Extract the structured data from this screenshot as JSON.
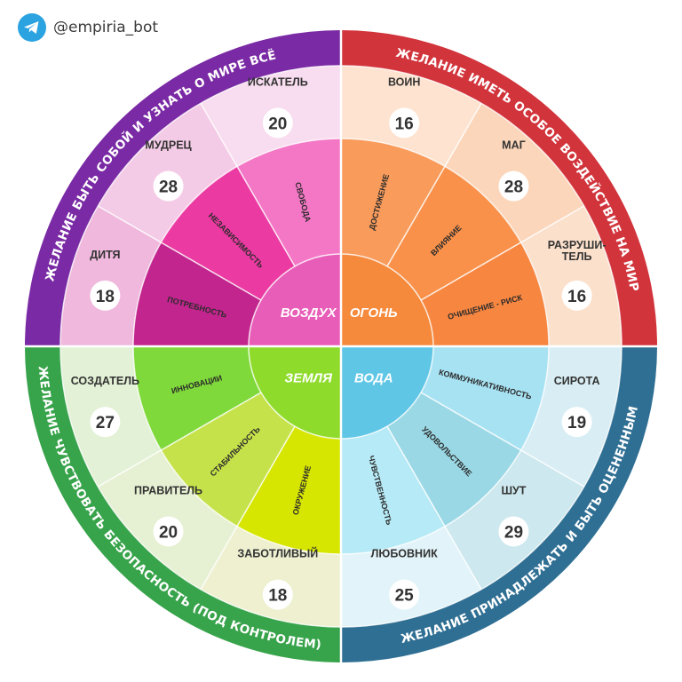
{
  "header": {
    "handle": "@empiria_bot",
    "icon": "telegram-icon"
  },
  "quadrants": [
    {
      "key": "air",
      "desire": "ЖЕЛАНИЕ БЫТЬ СОБОЙ И УЗНАТЬ О МИРЕ ВСЁ",
      "element": "ВОЗДУХ",
      "colors": {
        "band": "#7a2aa4",
        "core": "#e85db8"
      },
      "needs": [
        {
          "label": "ПОТРЕБНОСТЬ",
          "color": "#c2258e"
        },
        {
          "label": "НЕЗАВИСИМОСТЬ",
          "color": "#eb3aa2"
        },
        {
          "label": "СВОБОДА",
          "color": "#f477c6"
        }
      ],
      "archetypes": [
        {
          "name": "ДИТЯ",
          "value": 18,
          "color": "#efb8dc"
        },
        {
          "name": "МУДРЕЦ",
          "value": 28,
          "color": "#f4cbe6"
        },
        {
          "name": "ИСКАТЕЛЬ",
          "value": 20,
          "color": "#f8dcef"
        }
      ]
    },
    {
      "key": "fire",
      "desire": "ЖЕЛАНИЕ ИМЕТЬ ОСОБОЕ ВОЗДЕЙСТВИЕ НА МИР",
      "element": "ОГОНЬ",
      "colors": {
        "band": "#d2343c",
        "core": "#f58a3c"
      },
      "needs": [
        {
          "label": "ДОСТИЖЕНИЕ",
          "color": "#f99b5b"
        },
        {
          "label": "ВЛИЯНИЕ",
          "color": "#f9914a"
        },
        {
          "label": "ОЧИЩЕНИЕ - РИСК",
          "color": "#f78640"
        }
      ],
      "archetypes": [
        {
          "name": "ВОИН",
          "value": 16,
          "color": "#fde3d0"
        },
        {
          "name": "МАГ",
          "value": 28,
          "color": "#fcd6ba"
        },
        {
          "name": "РАЗРУШИ-ТЕЛЬ",
          "value": 16,
          "color": "#fbe0cc"
        }
      ]
    },
    {
      "key": "water",
      "desire": "ЖЕЛАНИЕ ПРИНАДЛЕЖАТЬ И БЫТЬ ОЦЕНЕННЫМ",
      "element": "ВОДА",
      "colors": {
        "band": "#2f6f93",
        "core": "#5fc6e6"
      },
      "needs": [
        {
          "label": "КОММУНИКАТИВНОСТЬ",
          "color": "#a7e2f3"
        },
        {
          "label": "УДОВОЛЬСТВИЕ",
          "color": "#9ad8e5"
        },
        {
          "label": "ЧУВСТВЕННОСТЬ",
          "color": "#b6eaf6"
        }
      ],
      "archetypes": [
        {
          "name": "СИРОТА",
          "value": 19,
          "color": "#d9eef4"
        },
        {
          "name": "ШУТ",
          "value": 29,
          "color": "#cde8ee"
        },
        {
          "name": "ЛЮБОВНИК",
          "value": 25,
          "color": "#e2f4f9"
        }
      ]
    },
    {
      "key": "earth",
      "desire": "ЖЕЛАНИЕ ЧУВСТВОВАТЬ БЕЗОПАСНОСТЬ (ПОД КОНТРОЛЕМ)",
      "element": "ЗЕМЛЯ",
      "colors": {
        "band": "#37a34a",
        "core": "#8edb2c"
      },
      "needs": [
        {
          "label": "ОКРУЖЕНИЕ",
          "color": "#d6e600"
        },
        {
          "label": "СТАБИЛЬНОСТЬ",
          "color": "#c6e24a"
        },
        {
          "label": "ИННОВАЦИИ",
          "color": "#7fd93a"
        }
      ],
      "archetypes": [
        {
          "name": "ЗАБОТЛИВЫЙ",
          "value": 18,
          "color": "#eef0d0"
        },
        {
          "name": "ПРАВИТЕЛЬ",
          "value": 20,
          "color": "#e6f0d2"
        },
        {
          "name": "СОЗДАТЕЛЬ",
          "value": 27,
          "color": "#e3f1d6"
        }
      ]
    }
  ]
}
